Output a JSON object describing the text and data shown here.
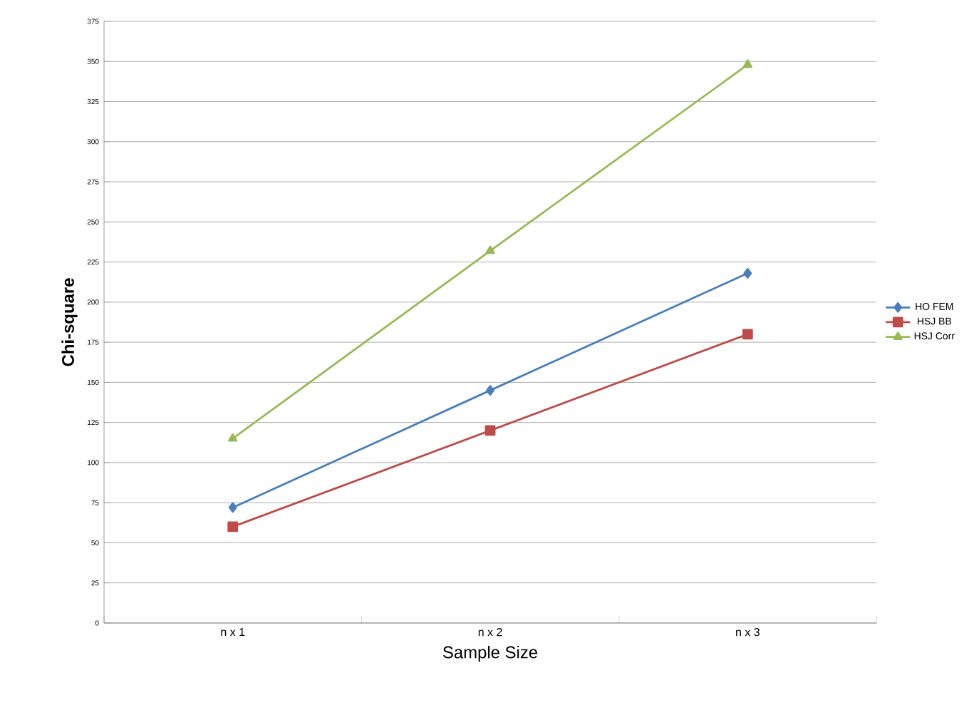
{
  "chart_data": {
    "type": "line",
    "xlabel": "Sample Size",
    "ylabel": "Chi-square",
    "categories": [
      "n x 1",
      "n x 2",
      "n x 3"
    ],
    "series": [
      {
        "name": "HO FEM",
        "color": "#4a7ebb",
        "marker": "diamond",
        "values": [
          72,
          145,
          218
        ]
      },
      {
        "name": "HSJ BB",
        "color": "#be4b48",
        "marker": "square",
        "values": [
          60,
          120,
          180
        ]
      },
      {
        "name": "HSJ Corr",
        "color": "#98b954",
        "marker": "triangle",
        "values": [
          115,
          232,
          348
        ]
      }
    ],
    "ylim": [
      0,
      375
    ],
    "yticks": [
      0,
      25,
      50,
      75,
      100,
      125,
      150,
      175,
      200,
      225,
      250,
      275,
      300,
      325,
      350,
      375
    ],
    "grid": "y",
    "legend": "right",
    "line_style": "solid"
  }
}
